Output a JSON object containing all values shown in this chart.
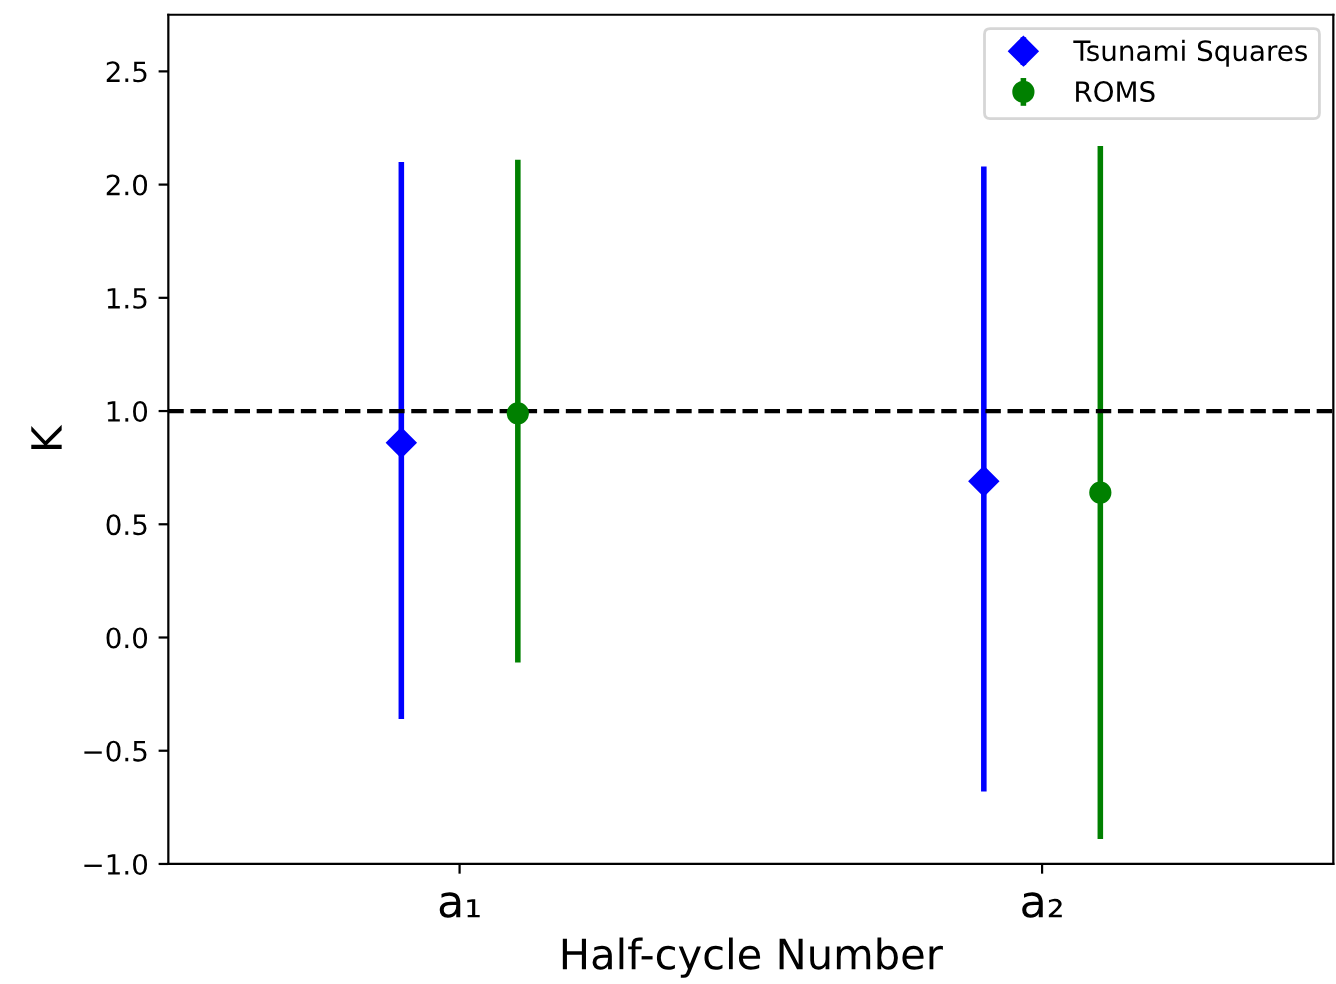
{
  "chart_data": {
    "type": "scatter",
    "xlabel": "Half-cycle Number",
    "ylabel": "K",
    "categories": [
      "a₁",
      "a₂"
    ],
    "series": [
      {
        "name": "Tsunami Squares",
        "color": "#0000ff",
        "marker": "diamond",
        "values": [
          0.86,
          0.69
        ],
        "errors": [
          [
            -0.36,
            2.1
          ],
          [
            -0.68,
            2.08
          ]
        ]
      },
      {
        "name": "ROMS",
        "color": "#008000",
        "marker": "circle",
        "values": [
          0.99,
          0.64
        ],
        "errors": [
          [
            -0.11,
            2.11
          ],
          [
            -0.89,
            2.17
          ]
        ]
      }
    ],
    "ylim": [
      -1.0,
      2.75
    ],
    "yticks": [
      {
        "value": -1.0,
        "label": "−1.0"
      },
      {
        "value": -0.5,
        "label": "−0.5"
      },
      {
        "value": 0.0,
        "label": "0.0"
      },
      {
        "value": 0.5,
        "label": "0.5"
      },
      {
        "value": 1.0,
        "label": "1.0"
      },
      {
        "value": 1.5,
        "label": "1.5"
      },
      {
        "value": 2.0,
        "label": "2.0"
      },
      {
        "value": 2.5,
        "label": "2.5"
      }
    ],
    "ref_lines": [
      {
        "axis": "y",
        "value": 1.0,
        "color": "#000000",
        "line_style": "dashed"
      }
    ],
    "legend": "top right",
    "grid": false
  }
}
